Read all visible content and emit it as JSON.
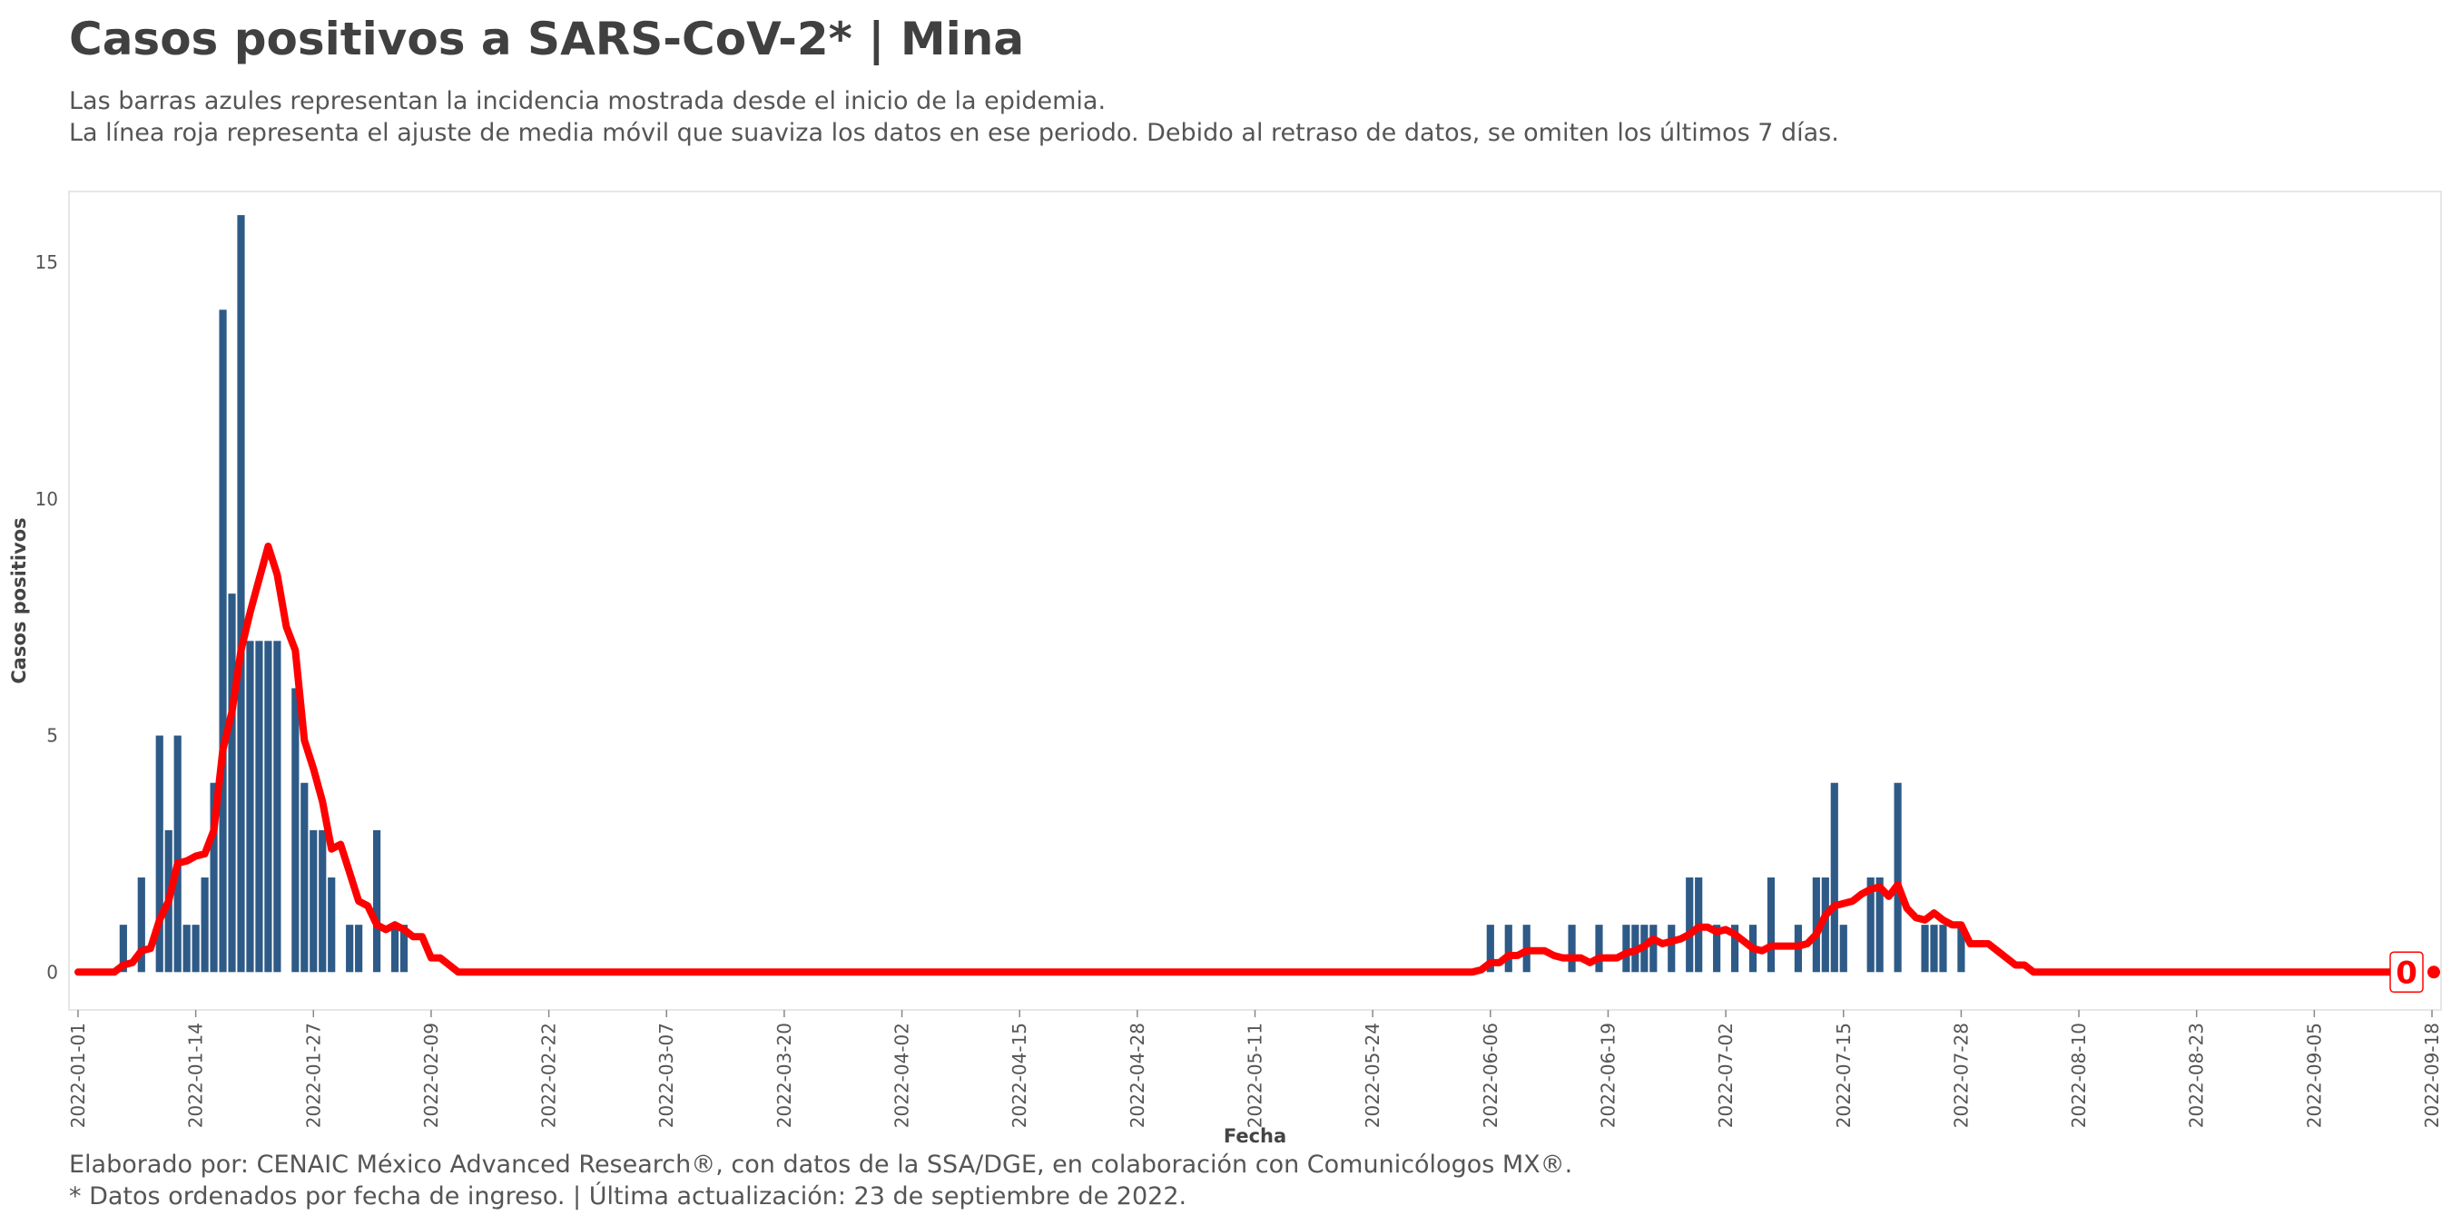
{
  "title": "Casos positivos a SARS-CoV-2* | Mina",
  "subtitle_lines": [
    "Las barras azules representan la incidencia mostrada desde el inicio de la epidemia.",
    "La línea roja representa el ajuste de media móvil que suaviza los datos en ese periodo. Debido al retraso de datos, se omiten los últimos 7 días."
  ],
  "caption_lines": [
    "Elaborado por: CENAIC México Advanced Research®, con datos de la SSA/DGE, en colaboración con Comunicólogos MX®.",
    "* Datos ordenados por fecha de ingreso. | Última actualización: 23 de septiembre de 2022."
  ],
  "colors": {
    "bars": "#2e5a87",
    "line": "#ff0000",
    "panel_border": "#e6e6e6"
  },
  "chart_data": {
    "type": "bar",
    "xlabel": "Fecha",
    "ylabel": "Casos positivos",
    "ylim": [
      -0.8,
      16.5
    ],
    "xlim": [
      "2021-12-31",
      "2022-09-19"
    ],
    "grid": false,
    "y_ticks": [
      0,
      5,
      10,
      15
    ],
    "x_ticks": [
      "2022-01-01",
      "2022-01-14",
      "2022-01-27",
      "2022-02-09",
      "2022-02-22",
      "2022-03-07",
      "2022-03-20",
      "2022-04-02",
      "2022-04-15",
      "2022-04-28",
      "2022-05-11",
      "2022-05-24",
      "2022-06-06",
      "2022-06-19",
      "2022-07-02",
      "2022-07-15",
      "2022-07-28",
      "2022-08-10",
      "2022-08-23",
      "2022-09-05",
      "2022-09-18"
    ],
    "bars": [
      [
        "2022-01-06",
        1
      ],
      [
        "2022-01-08",
        2
      ],
      [
        "2022-01-10",
        5
      ],
      [
        "2022-01-11",
        3
      ],
      [
        "2022-01-12",
        5
      ],
      [
        "2022-01-13",
        1
      ],
      [
        "2022-01-14",
        1
      ],
      [
        "2022-01-15",
        2
      ],
      [
        "2022-01-16",
        4
      ],
      [
        "2022-01-17",
        14
      ],
      [
        "2022-01-18",
        8
      ],
      [
        "2022-01-19",
        16
      ],
      [
        "2022-01-20",
        7
      ],
      [
        "2022-01-21",
        7
      ],
      [
        "2022-01-22",
        7
      ],
      [
        "2022-01-23",
        7
      ],
      [
        "2022-01-25",
        6
      ],
      [
        "2022-01-26",
        4
      ],
      [
        "2022-01-27",
        3
      ],
      [
        "2022-01-28",
        3
      ],
      [
        "2022-01-29",
        2
      ],
      [
        "2022-01-31",
        1
      ],
      [
        "2022-02-01",
        1
      ],
      [
        "2022-02-03",
        3
      ],
      [
        "2022-02-05",
        1
      ],
      [
        "2022-02-06",
        1
      ],
      [
        "2022-06-06",
        1
      ],
      [
        "2022-06-08",
        1
      ],
      [
        "2022-06-10",
        1
      ],
      [
        "2022-06-15",
        1
      ],
      [
        "2022-06-18",
        1
      ],
      [
        "2022-06-21",
        1
      ],
      [
        "2022-06-22",
        1
      ],
      [
        "2022-06-23",
        1
      ],
      [
        "2022-06-24",
        1
      ],
      [
        "2022-06-26",
        1
      ],
      [
        "2022-06-28",
        2
      ],
      [
        "2022-06-29",
        2
      ],
      [
        "2022-07-01",
        1
      ],
      [
        "2022-07-03",
        1
      ],
      [
        "2022-07-05",
        1
      ],
      [
        "2022-07-07",
        2
      ],
      [
        "2022-07-10",
        1
      ],
      [
        "2022-07-12",
        2
      ],
      [
        "2022-07-13",
        2
      ],
      [
        "2022-07-14",
        4
      ],
      [
        "2022-07-15",
        1
      ],
      [
        "2022-07-18",
        2
      ],
      [
        "2022-07-19",
        2
      ],
      [
        "2022-07-21",
        4
      ],
      [
        "2022-07-24",
        1
      ],
      [
        "2022-07-25",
        1
      ],
      [
        "2022-07-26",
        1
      ],
      [
        "2022-07-28",
        1
      ]
    ],
    "moving_average": [
      [
        "2022-01-01",
        0
      ],
      [
        "2022-01-05",
        0
      ],
      [
        "2022-01-06",
        0.15
      ],
      [
        "2022-01-07",
        0.2
      ],
      [
        "2022-01-08",
        0.45
      ],
      [
        "2022-01-09",
        0.5
      ],
      [
        "2022-01-10",
        1.1
      ],
      [
        "2022-01-11",
        1.5
      ],
      [
        "2022-01-12",
        2.3
      ],
      [
        "2022-01-13",
        2.35
      ],
      [
        "2022-01-14",
        2.45
      ],
      [
        "2022-01-15",
        2.5
      ],
      [
        "2022-01-16",
        3.0
      ],
      [
        "2022-01-17",
        4.7
      ],
      [
        "2022-01-18",
        5.5
      ],
      [
        "2022-01-19",
        6.8
      ],
      [
        "2022-01-20",
        7.6
      ],
      [
        "2022-01-21",
        8.3
      ],
      [
        "2022-01-22",
        9.0
      ],
      [
        "2022-01-23",
        8.4
      ],
      [
        "2022-01-24",
        7.3
      ],
      [
        "2022-01-25",
        6.8
      ],
      [
        "2022-01-26",
        4.9
      ],
      [
        "2022-01-27",
        4.3
      ],
      [
        "2022-01-28",
        3.6
      ],
      [
        "2022-01-29",
        2.6
      ],
      [
        "2022-01-30",
        2.7
      ],
      [
        "2022-01-31",
        2.1
      ],
      [
        "2022-02-01",
        1.5
      ],
      [
        "2022-02-02",
        1.4
      ],
      [
        "2022-02-03",
        1.0
      ],
      [
        "2022-02-04",
        0.9
      ],
      [
        "2022-02-05",
        1.0
      ],
      [
        "2022-02-06",
        0.9
      ],
      [
        "2022-02-07",
        0.75
      ],
      [
        "2022-02-08",
        0.75
      ],
      [
        "2022-02-09",
        0.3
      ],
      [
        "2022-02-10",
        0.3
      ],
      [
        "2022-02-11",
        0.15
      ],
      [
        "2022-02-12",
        0
      ],
      [
        "2022-06-04",
        0
      ],
      [
        "2022-06-05",
        0.05
      ],
      [
        "2022-06-06",
        0.2
      ],
      [
        "2022-06-07",
        0.2
      ],
      [
        "2022-06-08",
        0.35
      ],
      [
        "2022-06-09",
        0.35
      ],
      [
        "2022-06-10",
        0.45
      ],
      [
        "2022-06-11",
        0.45
      ],
      [
        "2022-06-12",
        0.45
      ],
      [
        "2022-06-13",
        0.35
      ],
      [
        "2022-06-14",
        0.3
      ],
      [
        "2022-06-15",
        0.3
      ],
      [
        "2022-06-16",
        0.3
      ],
      [
        "2022-06-17",
        0.2
      ],
      [
        "2022-06-18",
        0.3
      ],
      [
        "2022-06-19",
        0.3
      ],
      [
        "2022-06-20",
        0.3
      ],
      [
        "2022-06-21",
        0.4
      ],
      [
        "2022-06-22",
        0.45
      ],
      [
        "2022-06-23",
        0.55
      ],
      [
        "2022-06-24",
        0.7
      ],
      [
        "2022-06-25",
        0.6
      ],
      [
        "2022-06-26",
        0.65
      ],
      [
        "2022-06-27",
        0.7
      ],
      [
        "2022-06-28",
        0.8
      ],
      [
        "2022-06-29",
        0.95
      ],
      [
        "2022-06-30",
        0.95
      ],
      [
        "2022-07-01",
        0.85
      ],
      [
        "2022-07-02",
        0.9
      ],
      [
        "2022-07-03",
        0.8
      ],
      [
        "2022-07-04",
        0.65
      ],
      [
        "2022-07-05",
        0.5
      ],
      [
        "2022-07-06",
        0.45
      ],
      [
        "2022-07-07",
        0.55
      ],
      [
        "2022-07-08",
        0.55
      ],
      [
        "2022-07-09",
        0.55
      ],
      [
        "2022-07-10",
        0.55
      ],
      [
        "2022-07-11",
        0.6
      ],
      [
        "2022-07-12",
        0.8
      ],
      [
        "2022-07-13",
        1.2
      ],
      [
        "2022-07-14",
        1.4
      ],
      [
        "2022-07-15",
        1.45
      ],
      [
        "2022-07-16",
        1.5
      ],
      [
        "2022-07-17",
        1.65
      ],
      [
        "2022-07-18",
        1.75
      ],
      [
        "2022-07-19",
        1.8
      ],
      [
        "2022-07-20",
        1.6
      ],
      [
        "2022-07-21",
        1.85
      ],
      [
        "2022-07-22",
        1.35
      ],
      [
        "2022-07-23",
        1.15
      ],
      [
        "2022-07-24",
        1.1
      ],
      [
        "2022-07-25",
        1.25
      ],
      [
        "2022-07-26",
        1.1
      ],
      [
        "2022-07-27",
        1.0
      ],
      [
        "2022-07-28",
        1.0
      ],
      [
        "2022-07-29",
        0.6
      ],
      [
        "2022-07-30",
        0.6
      ],
      [
        "2022-07-31",
        0.6
      ],
      [
        "2022-08-01",
        0.45
      ],
      [
        "2022-08-02",
        0.3
      ],
      [
        "2022-08-03",
        0.15
      ],
      [
        "2022-08-04",
        0.15
      ],
      [
        "2022-08-05",
        0
      ],
      [
        "2022-09-16",
        0
      ]
    ],
    "end_value_label": "0",
    "end_point": [
      "2022-09-18",
      0
    ]
  }
}
